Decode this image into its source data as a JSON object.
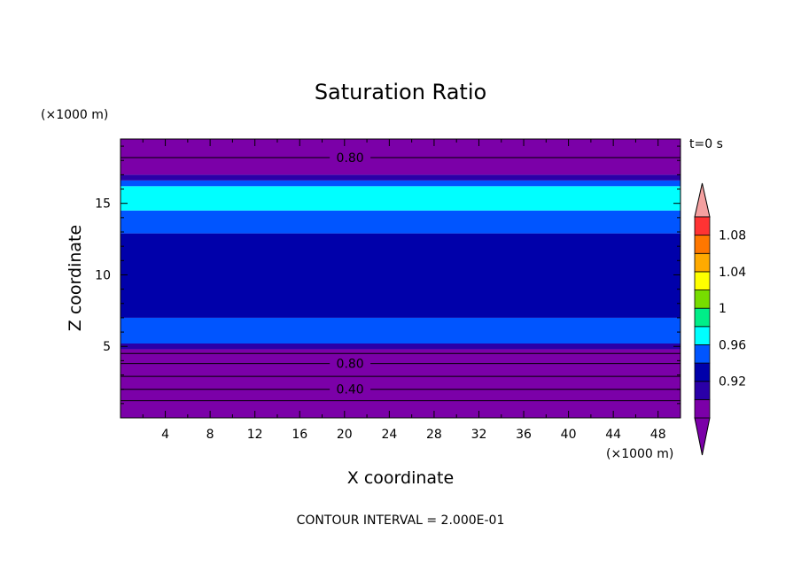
{
  "chart_data": {
    "type": "heatmap",
    "title": "Saturation Ratio",
    "xlabel": "X coordinate",
    "ylabel": "Z coordinate",
    "x_unit": "(×1000 m)",
    "y_unit": "(×1000 m)",
    "time_label": "t=0 s",
    "footer": "CONTOUR INTERVAL = 2.000E-01",
    "xlim": [
      0,
      50
    ],
    "ylim": [
      0,
      19.5
    ],
    "x_ticks": [
      4,
      8,
      12,
      16,
      20,
      24,
      28,
      32,
      36,
      40,
      44,
      48
    ],
    "y_ticks": [
      5,
      10,
      15
    ],
    "bands": [
      {
        "z0": 0.0,
        "z1": 4.8,
        "color": "#7B00A8"
      },
      {
        "z0": 4.8,
        "z1": 5.2,
        "color": "#2A00A8"
      },
      {
        "z0": 5.2,
        "z1": 7.0,
        "color": "#0055FF"
      },
      {
        "z0": 7.0,
        "z1": 12.9,
        "color": "#0000AA"
      },
      {
        "z0": 12.9,
        "z1": 14.5,
        "color": "#0055FF"
      },
      {
        "z0": 14.5,
        "z1": 16.2,
        "color": "#00FFFF"
      },
      {
        "z0": 16.2,
        "z1": 16.6,
        "color": "#0055FF"
      },
      {
        "z0": 16.6,
        "z1": 17.0,
        "color": "#2A00A8"
      },
      {
        "z0": 17.0,
        "z1": 19.5,
        "color": "#7B00A8"
      }
    ],
    "contours": [
      {
        "z": 18.2,
        "label": "0.80"
      },
      {
        "z": 4.5,
        "label": ""
      },
      {
        "z": 3.8,
        "label": "0.80"
      },
      {
        "z": 2.9,
        "label": ""
      },
      {
        "z": 2.0,
        "label": "0.40"
      },
      {
        "z": 1.2,
        "label": ""
      }
    ],
    "colorbar": {
      "colors": [
        "#7B00A8",
        "#2A00A8",
        "#0000AA",
        "#0055FF",
        "#00FFFF",
        "#00EE88",
        "#77DD00",
        "#FFFF00",
        "#FFAA00",
        "#FF7700",
        "#FF3333"
      ],
      "over_color": "#F4A0A0",
      "under_color": "#7B00A8",
      "labels": [
        {
          "value": "0.92",
          "index": 2
        },
        {
          "value": "0.96",
          "index": 4
        },
        {
          "value": "1",
          "index": 6
        },
        {
          "value": "1.04",
          "index": 8
        },
        {
          "value": "1.08",
          "index": 10
        }
      ]
    }
  }
}
